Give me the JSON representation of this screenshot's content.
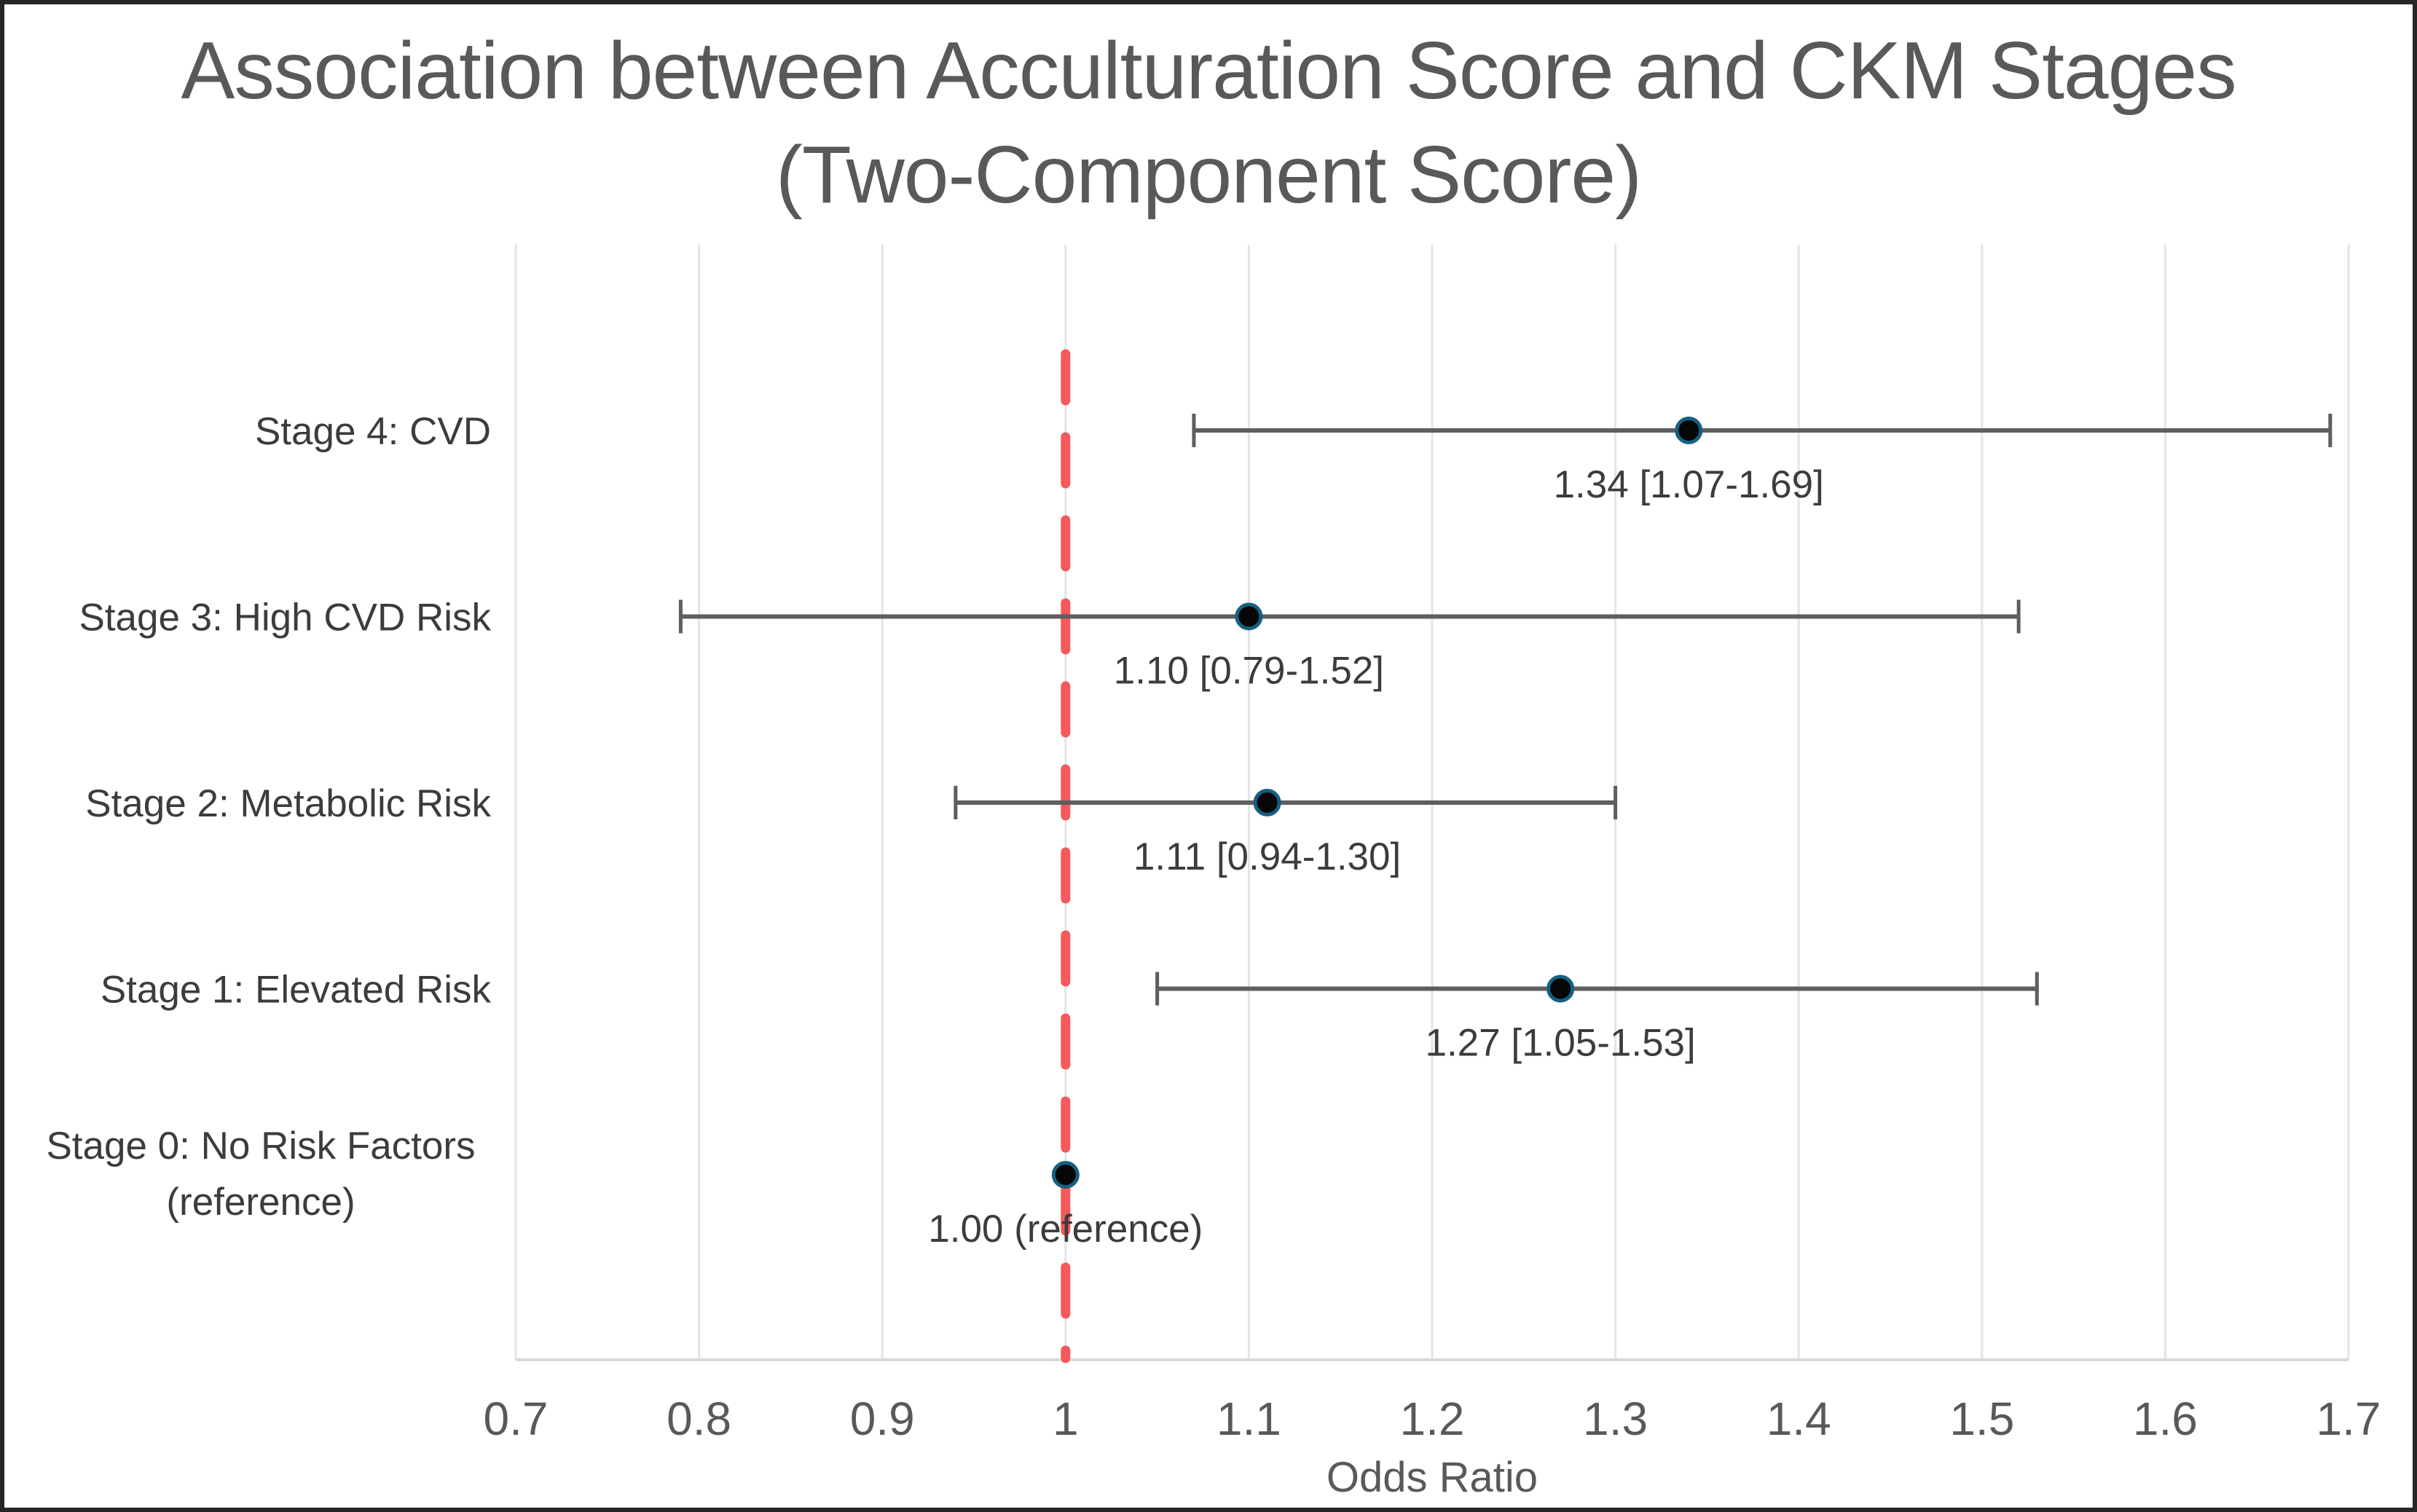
{
  "chart_data": {
    "type": "scatter",
    "subtype": "forest-plot",
    "title_line1": "Association between Acculturation Score and CKM Stages",
    "title_line2": "(Two-Component Score)",
    "xlabel": "Odds Ratio",
    "xlim": [
      0.7,
      1.7
    ],
    "x_ticks": [
      0.7,
      0.8,
      0.9,
      1.0,
      1.1,
      1.2,
      1.3,
      1.4,
      1.5,
      1.6,
      1.7
    ],
    "x_tick_labels": [
      "0.7",
      "0.8",
      "0.9",
      "1",
      "1.1",
      "1.2",
      "1.3",
      "1.4",
      "1.5",
      "1.6",
      "1.7"
    ],
    "grid": true,
    "legend": false,
    "reference_line": {
      "x": 1.0,
      "style": "dashed"
    },
    "rows": [
      {
        "label": "Stage 4: CVD",
        "label_line2": "",
        "or": 1.34,
        "ci_low": 1.07,
        "ci_high": 1.69,
        "annotation": "1.34 [1.07-1.69]"
      },
      {
        "label": "Stage 3: High CVD Risk",
        "label_line2": "",
        "or": 1.1,
        "ci_low": 0.79,
        "ci_high": 1.52,
        "annotation": "1.10 [0.79-1.52]"
      },
      {
        "label": "Stage 2: Metabolic Risk",
        "label_line2": "",
        "or": 1.11,
        "ci_low": 0.94,
        "ci_high": 1.3,
        "annotation": "1.11 [0.94-1.30]"
      },
      {
        "label": "Stage 1: Elevated Risk",
        "label_line2": "",
        "or": 1.27,
        "ci_low": 1.05,
        "ci_high": 1.53,
        "annotation": "1.27 [1.05-1.53]"
      },
      {
        "label": "Stage 0: No Risk Factors",
        "label_line2": "(reference)",
        "or": 1.0,
        "ci_low": null,
        "ci_high": null,
        "annotation": "1.00 (reference)"
      }
    ],
    "colors": {
      "title_text": "#595959",
      "axis_text": "#595959",
      "label_text": "#3C3C3C",
      "gridline": "#E4E4E4",
      "axis_line": "#D9D9D9",
      "error_bar": "#5E5E5E",
      "marker_fill": "#070707",
      "marker_border": "#156082",
      "reference_line": "#F4595B",
      "frame_border": "#262626"
    }
  }
}
